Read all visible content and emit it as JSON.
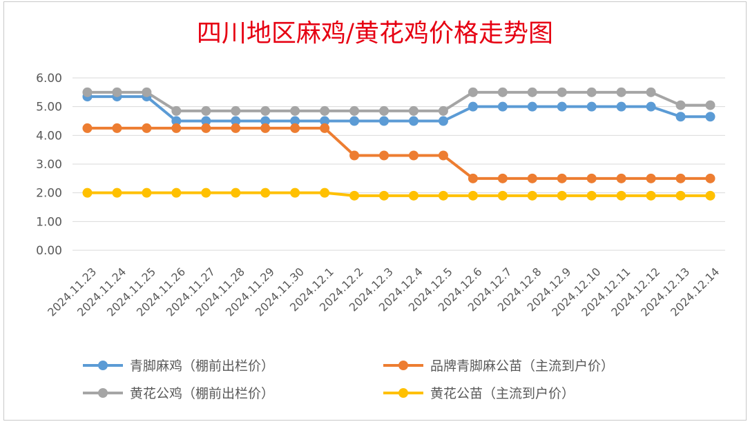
{
  "chart_data": {
    "type": "line",
    "title": "四川地区麻鸡/黄花鸡价格走势图",
    "xlabel": "",
    "ylabel": "",
    "ylim": [
      0,
      6
    ],
    "yticks": [
      "0.00",
      "1.00",
      "2.00",
      "3.00",
      "4.00",
      "5.00",
      "6.00"
    ],
    "grid": true,
    "legend_position": "bottom",
    "categories": [
      "2024.11.23",
      "2024.11.24",
      "2024.11.25",
      "2024.11.26",
      "2024.11.27",
      "2024.11.28",
      "2024.11.29",
      "2024.11.30",
      "2024.12.1",
      "2024.12.2",
      "2024.12.3",
      "2024.12.4",
      "2024.12.5",
      "2024.12.6",
      "2024.12.7",
      "2024.12.8",
      "2024.12.9",
      "2024.12.10",
      "2024.12.11",
      "2024.12.12",
      "2024.12.13",
      "2024.12.14"
    ],
    "series": [
      {
        "name": "青脚麻鸡（棚前出栏价）",
        "color": "#5b9bd5",
        "values": [
          5.35,
          5.35,
          5.35,
          4.5,
          4.5,
          4.5,
          4.5,
          4.5,
          4.5,
          4.5,
          4.5,
          4.5,
          4.5,
          5.0,
          5.0,
          5.0,
          5.0,
          5.0,
          5.0,
          5.0,
          4.65,
          4.65
        ]
      },
      {
        "name": "品牌青脚麻公苗（主流到户价）",
        "color": "#ed7d31",
        "values": [
          4.25,
          4.25,
          4.25,
          4.25,
          4.25,
          4.25,
          4.25,
          4.25,
          4.25,
          3.3,
          3.3,
          3.3,
          3.3,
          2.5,
          2.5,
          2.5,
          2.5,
          2.5,
          2.5,
          2.5,
          2.5,
          2.5
        ]
      },
      {
        "name": "黄花公鸡（棚前出栏价）",
        "color": "#a5a5a5",
        "values": [
          5.5,
          5.5,
          5.5,
          4.85,
          4.85,
          4.85,
          4.85,
          4.85,
          4.85,
          4.85,
          4.85,
          4.85,
          4.85,
          5.5,
          5.5,
          5.5,
          5.5,
          5.5,
          5.5,
          5.5,
          5.05,
          5.05
        ]
      },
      {
        "name": "黄花公苗（主流到户价）",
        "color": "#ffc000",
        "values": [
          2.0,
          2.0,
          2.0,
          2.0,
          2.0,
          2.0,
          2.0,
          2.0,
          2.0,
          1.9,
          1.9,
          1.9,
          1.9,
          1.9,
          1.9,
          1.9,
          1.9,
          1.9,
          1.9,
          1.9,
          1.9,
          1.9
        ]
      }
    ]
  }
}
